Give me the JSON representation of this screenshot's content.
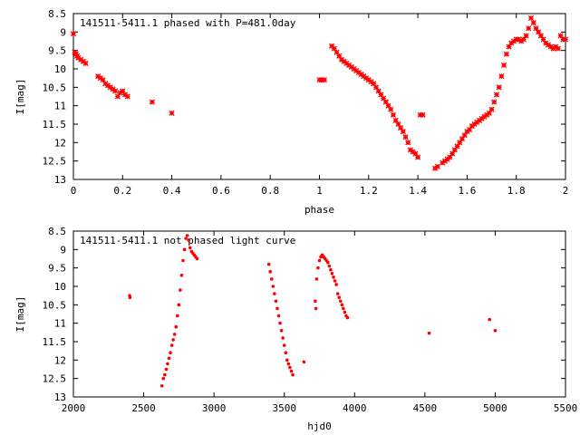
{
  "chart_data": [
    {
      "type": "scatter",
      "title": "141511-5411.1 phased with P=481.0day",
      "xlabel": "phase",
      "ylabel": "I[mag]",
      "xlim": [
        0,
        2
      ],
      "ylim": [
        13,
        8.5
      ],
      "y_inverted": true,
      "x_ticks": [
        "0",
        "0.2",
        "0.4",
        "0.6",
        "0.8",
        "1",
        "1.2",
        "1.4",
        "1.6",
        "1.8",
        "2"
      ],
      "y_ticks": [
        "8.5",
        "9",
        "9.5",
        "10",
        "10.5",
        "11",
        "11.5",
        "12",
        "12.5",
        "13"
      ],
      "marker_color": "#ff0000",
      "marker": "cross",
      "grid": false,
      "series": [
        {
          "x": [
            0.0,
            0.005,
            0.01,
            0.015,
            0.02,
            0.03,
            0.04,
            0.05,
            0.1,
            0.11,
            0.12,
            0.13,
            0.14,
            0.15,
            0.16,
            0.17,
            0.18,
            0.19,
            0.2,
            0.21,
            0.22,
            0.32,
            0.4,
            1.0,
            1.01,
            1.02,
            1.05,
            1.06,
            1.07,
            1.08,
            1.09,
            1.1,
            1.11,
            1.12,
            1.13,
            1.14,
            1.15,
            1.16,
            1.17,
            1.18,
            1.19,
            1.2,
            1.21,
            1.22,
            1.23,
            1.24,
            1.25,
            1.26,
            1.27,
            1.28,
            1.29,
            1.3,
            1.31,
            1.32,
            1.33,
            1.34,
            1.35,
            1.36,
            1.37,
            1.38,
            1.39,
            1.4,
            1.41,
            1.42,
            1.47,
            1.48,
            1.5,
            1.51,
            1.52,
            1.53,
            1.54,
            1.55,
            1.56,
            1.57,
            1.58,
            1.59,
            1.6,
            1.61,
            1.62,
            1.63,
            1.64,
            1.65,
            1.66,
            1.67,
            1.68,
            1.69,
            1.7,
            1.71,
            1.72,
            1.73,
            1.74,
            1.75,
            1.76,
            1.77,
            1.78,
            1.79,
            1.8,
            1.81,
            1.82,
            1.83,
            1.84,
            1.85,
            1.86,
            1.87,
            1.88,
            1.89,
            1.9,
            1.91,
            1.92,
            1.93,
            1.94,
            1.95,
            1.96,
            1.97,
            1.98,
            1.99,
            2.0
          ],
          "y": [
            9.05,
            9.55,
            9.6,
            9.65,
            9.7,
            9.75,
            9.8,
            9.85,
            10.2,
            10.25,
            10.3,
            10.4,
            10.45,
            10.5,
            10.55,
            10.6,
            10.75,
            10.65,
            10.6,
            10.7,
            10.75,
            10.9,
            11.2,
            10.3,
            10.3,
            10.3,
            9.38,
            9.45,
            9.55,
            9.65,
            9.75,
            9.8,
            9.85,
            9.9,
            9.95,
            10.0,
            10.05,
            10.1,
            10.15,
            10.2,
            10.25,
            10.3,
            10.35,
            10.4,
            10.5,
            10.6,
            10.7,
            10.8,
            10.9,
            11.0,
            11.1,
            11.25,
            11.4,
            11.5,
            11.6,
            11.7,
            11.85,
            12.0,
            12.2,
            12.25,
            12.3,
            12.4,
            11.25,
            11.25,
            12.7,
            12.65,
            12.55,
            12.5,
            12.45,
            12.4,
            12.3,
            12.2,
            12.1,
            12.0,
            11.9,
            11.8,
            11.7,
            11.65,
            11.55,
            11.5,
            11.45,
            11.4,
            11.35,
            11.3,
            11.25,
            11.2,
            11.1,
            10.9,
            10.7,
            10.5,
            10.2,
            9.9,
            9.6,
            9.4,
            9.3,
            9.25,
            9.2,
            9.2,
            9.25,
            9.2,
            9.1,
            8.9,
            8.62,
            8.75,
            8.9,
            9.0,
            9.1,
            9.2,
            9.3,
            9.35,
            9.4,
            9.45,
            9.4,
            9.45,
            9.1,
            9.2,
            9.2
          ]
        }
      ]
    },
    {
      "type": "scatter",
      "title": "141511-5411.1 not phased light curve",
      "xlabel": "hjd0",
      "ylabel": "I[mag]",
      "xlim": [
        2000,
        5500
      ],
      "ylim": [
        13,
        8.5
      ],
      "y_inverted": true,
      "x_ticks": [
        "2000",
        "2500",
        "3000",
        "3500",
        "4000",
        "4500",
        "5000",
        "5500"
      ],
      "y_ticks": [
        "8.5",
        "9",
        "9.5",
        "10",
        "10.5",
        "11",
        "11.5",
        "12",
        "12.5",
        "13"
      ],
      "marker_color": "#ff0000",
      "marker": "dot",
      "grid": false,
      "series": [
        {
          "x": [
            2400,
            2402,
            2630,
            2640,
            2650,
            2660,
            2670,
            2680,
            2690,
            2700,
            2710,
            2720,
            2730,
            2740,
            2750,
            2760,
            2770,
            2780,
            2790,
            2800,
            2810,
            2820,
            2830,
            2840,
            2850,
            2860,
            2870,
            2880,
            3390,
            3400,
            3410,
            3420,
            3430,
            3440,
            3450,
            3460,
            3470,
            3480,
            3490,
            3500,
            3510,
            3520,
            3530,
            3540,
            3550,
            3560,
            3640,
            3720,
            3725,
            3730,
            3740,
            3750,
            3760,
            3770,
            3780,
            3790,
            3800,
            3810,
            3820,
            3830,
            3840,
            3850,
            3860,
            3870,
            3880,
            3890,
            3900,
            3910,
            3920,
            3930,
            3940,
            3950,
            4530,
            4960,
            5000
          ],
          "y": [
            10.25,
            10.3,
            12.7,
            12.5,
            12.4,
            12.25,
            12.1,
            11.95,
            11.8,
            11.6,
            11.45,
            11.3,
            11.1,
            10.8,
            10.5,
            10.1,
            9.7,
            9.3,
            9.0,
            8.7,
            8.62,
            8.75,
            8.95,
            9.05,
            9.1,
            9.15,
            9.2,
            9.25,
            9.4,
            9.6,
            9.8,
            10.0,
            10.2,
            10.4,
            10.6,
            10.8,
            11.0,
            11.2,
            11.4,
            11.6,
            11.8,
            12.0,
            12.1,
            12.2,
            12.3,
            12.4,
            12.05,
            10.4,
            10.6,
            9.8,
            9.5,
            9.3,
            9.2,
            9.15,
            9.2,
            9.25,
            9.3,
            9.35,
            9.45,
            9.55,
            9.65,
            9.75,
            9.85,
            9.95,
            10.2,
            10.3,
            10.4,
            10.5,
            10.6,
            10.7,
            10.8,
            10.85,
            11.27,
            10.9,
            11.2
          ]
        }
      ]
    }
  ]
}
